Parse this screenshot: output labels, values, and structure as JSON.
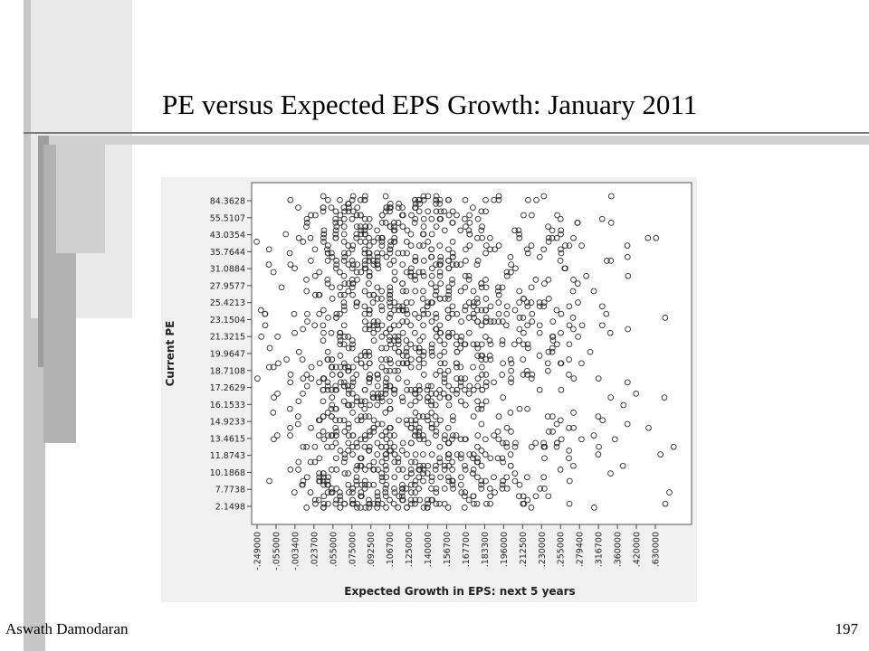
{
  "slide": {
    "title": "PE versus Expected EPS Growth: January 2011",
    "author": "Aswath Damodaran",
    "page_number": "197"
  },
  "chart_data": {
    "type": "scatter",
    "title": "",
    "xlabel": "Expected Growth in EPS: next 5 years",
    "ylabel": "Current PE",
    "x_scale": "categorical (quantile bins)",
    "x_ticks": [
      "-.249000",
      "-.055000",
      "-.003400",
      ".023700",
      ".055000",
      ".075000",
      ".092500",
      ".106700",
      ".125000",
      ".140000",
      ".156700",
      ".167700",
      ".183300",
      ".196000",
      ".212500",
      ".230000",
      ".255000",
      ".279400",
      ".316700",
      ".360000",
      ".420000",
      ".630000"
    ],
    "y_scale": "categorical (quantile bins)",
    "y_ticks": [
      "2.1498",
      "7.7738",
      "10.1868",
      "11.8743",
      "13.4615",
      "14.9233",
      "16.1533",
      "17.2629",
      "18.7108",
      "19.9647",
      "21.3215",
      "23.1504",
      "25.4213",
      "27.9577",
      "31.0884",
      "35.7644",
      "43.0354",
      "55.5107",
      "84.3628"
    ],
    "grid": false,
    "legend": "none",
    "marker": "open-circle",
    "density_profile": [
      0.6,
      1.2,
      2.0,
      3.2,
      9.0,
      10.5,
      11.0,
      10.5,
      9.5,
      9.0,
      8.0,
      6.0,
      5.5,
      4.0,
      4.0,
      3.0,
      2.6,
      2.2,
      1.6,
      1.1,
      0.8,
      0.4,
      0.2
    ],
    "point_count": 1450,
    "colors": {
      "marker": "#2b2b2b",
      "plot_bg": "#ffffff",
      "frame": "#555555",
      "panel_bg": "#f0f0f0"
    }
  }
}
